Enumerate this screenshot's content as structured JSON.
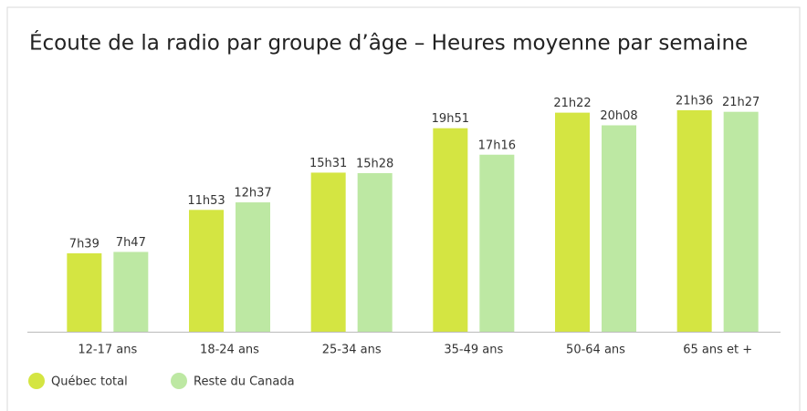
{
  "chart_data": {
    "type": "bar",
    "title": "Écoute de la radio par groupe d’âge – Heures moyenne par semaine",
    "categories": [
      "12-17 ans",
      "18-24 ans",
      "25-34 ans",
      "35-49 ans",
      "50-64 ans",
      "65 ans et +"
    ],
    "series": [
      {
        "name": "Québec total",
        "color": "#d4e542",
        "values": [
          459,
          713,
          931,
          1191,
          1282,
          1296
        ],
        "value_labels": [
          "7h39",
          "11h53",
          "15h31",
          "19h51",
          "21h22",
          "21h36"
        ]
      },
      {
        "name": "Reste du Canada",
        "color": "#bde8a3",
        "values": [
          467,
          757,
          928,
          1036,
          1208,
          1287
        ],
        "value_labels": [
          "7h47",
          "12h37",
          "15h28",
          "17h16",
          "20h08",
          "21h27"
        ]
      }
    ],
    "ylim": [
      0,
      1400
    ],
    "legend": "bottom-left"
  }
}
